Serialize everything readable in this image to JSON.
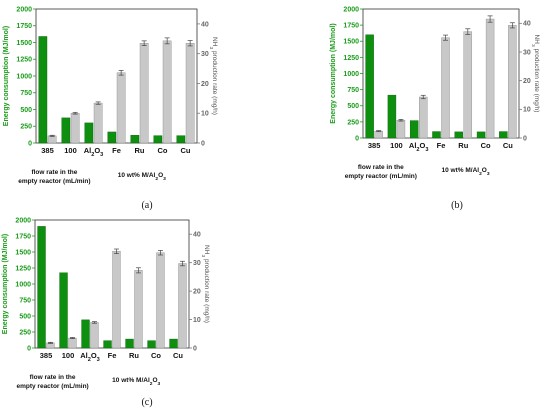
{
  "chart_data": [
    {
      "type": "bar",
      "panel_label": "(a)",
      "categories": [
        "385",
        "100",
        "Al2O3",
        "Fe",
        "Ru",
        "Co",
        "Cu"
      ],
      "ylabel": "Energy consumption (MJ/mol)",
      "y2label": "NH3 production rate (mg/h)",
      "ylim": [
        0,
        2000
      ],
      "y2lim": [
        0,
        45
      ],
      "yticks": [
        "0",
        "250",
        "500",
        "750",
        "1000",
        "1250",
        "1500",
        "1750",
        "2000"
      ],
      "y2ticks": [
        "0",
        "10",
        "20",
        "30",
        "40"
      ],
      "group_labels": {
        "flow": [
          "flow rate in the",
          "empty reactor (mL/min)"
        ],
        "catalyst": "10 wt% M/Al2O3"
      },
      "series": [
        {
          "axis": "left",
          "color": "#0f8f0f",
          "values": [
            1590,
            375,
            300,
            165,
            115,
            110,
            110
          ]
        },
        {
          "axis": "right",
          "color": "#c8c8c8",
          "values": [
            2.4,
            10,
            13.4,
            23.6,
            33.5,
            34.3,
            33.5
          ],
          "errors": [
            0.2,
            0.3,
            0.4,
            0.8,
            0.8,
            1.0,
            0.9
          ]
        }
      ]
    },
    {
      "type": "bar",
      "panel_label": "(b)",
      "categories": [
        "385",
        "100",
        "Al2O3",
        "Fe",
        "Ru",
        "Co",
        "Cu"
      ],
      "ylabel": "Energy consumption (MJ/mol)",
      "y2label": "NH3 production rate (mg/h)",
      "ylim": [
        0,
        2000
      ],
      "y2lim": [
        0,
        45
      ],
      "yticks": [
        "0",
        "250",
        "500",
        "750",
        "1000",
        "1250",
        "1500",
        "1750",
        "2000"
      ],
      "y2ticks": [
        "0",
        "10",
        "20",
        "30",
        "40"
      ],
      "group_labels": {
        "flow": [
          "flow rate in the",
          "empty reactor (mL/min)"
        ],
        "catalyst": "10 wt% M/Al2O3"
      },
      "series": [
        {
          "axis": "left",
          "color": "#0f8f0f",
          "values": [
            1600,
            665,
            270,
            100,
            95,
            95,
            100
          ]
        },
        {
          "axis": "right",
          "color": "#c8c8c8",
          "values": [
            2.4,
            6.2,
            14.3,
            35,
            37.1,
            41.5,
            39.3
          ],
          "errors": [
            0.2,
            0.3,
            0.6,
            0.9,
            1.0,
            1.1,
            0.9
          ]
        }
      ]
    },
    {
      "type": "bar",
      "panel_label": "(c)",
      "categories": [
        "385",
        "100",
        "Al2O3",
        "Fe",
        "Ru",
        "Co",
        "Cu"
      ],
      "ylabel": "Energy consumption (MJ/mol)",
      "y2label": "NH3 production rate (mg/h)",
      "ylim": [
        0,
        2000
      ],
      "y2lim": [
        0,
        45
      ],
      "yticks": [
        "0",
        "250",
        "500",
        "750",
        "1000",
        "1250",
        "1500",
        "1750",
        "2000"
      ],
      "y2ticks": [
        "0",
        "10",
        "20",
        "30",
        "40"
      ],
      "group_labels": {
        "flow": [
          "flow rate in the",
          "empty reactor (mL/min)"
        ],
        "catalyst": "10 wt% M/Al2O3"
      },
      "series": [
        {
          "axis": "left",
          "color": "#0f8f0f",
          "values": [
            1900,
            1175,
            440,
            115,
            140,
            115,
            140
          ]
        },
        {
          "axis": "right",
          "color": "#c8c8c8",
          "values": [
            1.8,
            3.5,
            9,
            34,
            27.3,
            33.5,
            29.7
          ],
          "errors": [
            0.2,
            0.2,
            0.3,
            0.8,
            0.9,
            0.8,
            0.8
          ]
        }
      ]
    }
  ]
}
